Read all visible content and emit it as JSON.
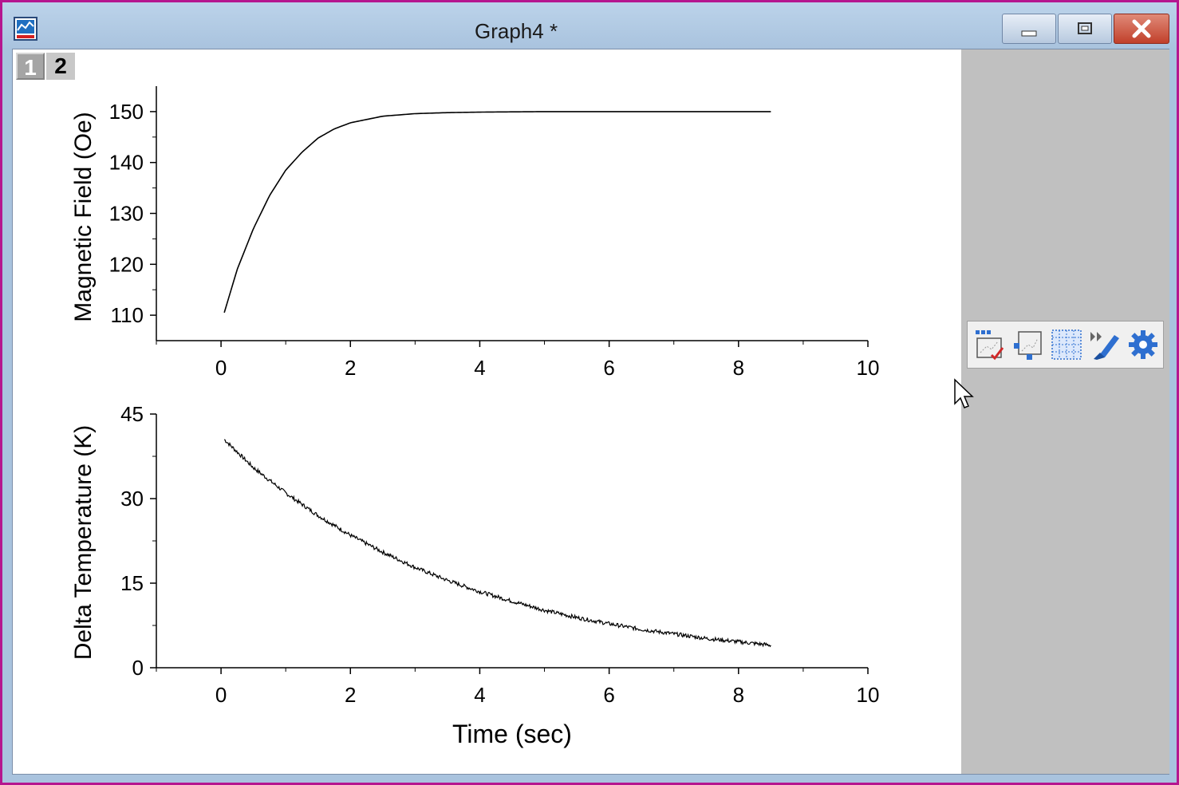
{
  "window": {
    "title": "Graph4 *",
    "border_color": "#b5168f",
    "titlebar_color": "#a9c3de",
    "buttons": [
      "minimize-icon",
      "restore-icon",
      "close-icon"
    ]
  },
  "layers": {
    "tabs": [
      "1",
      "2"
    ],
    "active": "2"
  },
  "toolbar": {
    "icons": [
      "layer-scale-icon",
      "rescale-icon",
      "grid-pattern-icon",
      "format-brush-icon",
      "gear-icon"
    ]
  },
  "chart_data": [
    {
      "type": "line",
      "title": "",
      "xlabel": "",
      "ylabel": "Magnetic Field (Oe)",
      "xlim": [
        -1,
        10
      ],
      "ylim": [
        105,
        155
      ],
      "xticks": [
        0,
        2,
        4,
        6,
        8,
        10
      ],
      "yticks": [
        110,
        120,
        130,
        140,
        150
      ],
      "grid": false,
      "series": [
        {
          "color": "#000000",
          "x": [
            0.05,
            0.25,
            0.5,
            0.75,
            1.0,
            1.25,
            1.5,
            1.75,
            2.0,
            2.5,
            3.0,
            3.5,
            4.0,
            5.0,
            6.0,
            7.0,
            8.0,
            8.5
          ],
          "y": [
            110.5,
            119.0,
            127.0,
            133.5,
            138.5,
            142.0,
            144.8,
            146.6,
            147.8,
            149.1,
            149.6,
            149.8,
            149.9,
            150.0,
            150.0,
            150.0,
            150.0,
            150.0
          ]
        }
      ]
    },
    {
      "type": "line",
      "title": "",
      "xlabel": "Time (sec)",
      "ylabel": "Delta Temperature (K)",
      "xlim": [
        -1,
        10
      ],
      "ylim": [
        0,
        45
      ],
      "xticks": [
        0,
        2,
        4,
        6,
        8,
        10
      ],
      "yticks": [
        0,
        15,
        30,
        45
      ],
      "grid": false,
      "series": [
        {
          "color": "#000000",
          "x": [
            0.05,
            0.5,
            1.0,
            1.5,
            2.0,
            2.5,
            3.0,
            3.5,
            4.0,
            4.5,
            5.0,
            5.5,
            6.0,
            6.5,
            7.0,
            7.5,
            8.0,
            8.5
          ],
          "y": [
            40.5,
            35.5,
            31.0,
            27.0,
            23.5,
            20.5,
            17.8,
            15.5,
            13.5,
            11.8,
            10.2,
            8.9,
            7.8,
            6.8,
            6.0,
            5.2,
            4.6,
            4.0
          ]
        }
      ]
    }
  ]
}
